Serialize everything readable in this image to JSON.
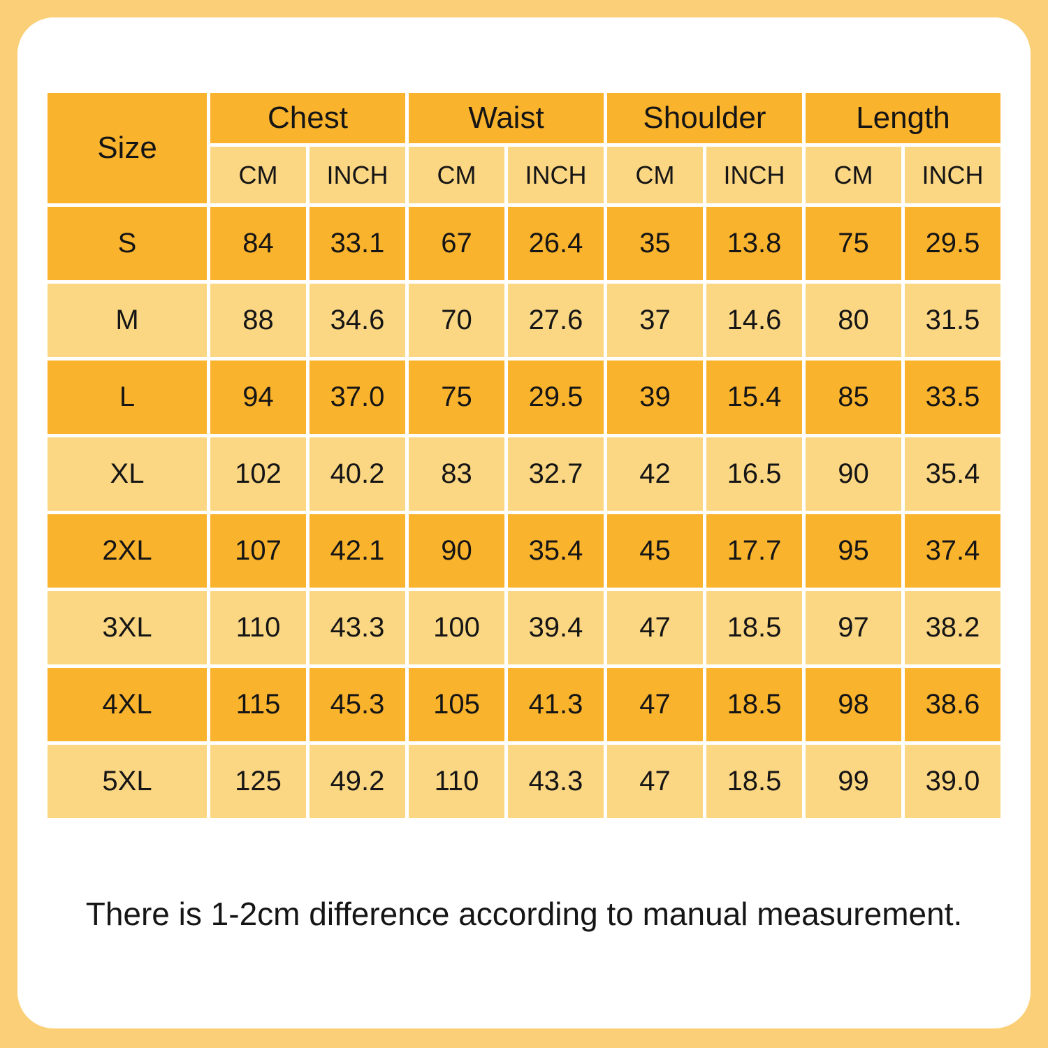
{
  "colors": {
    "frame_border": "#FBCF77",
    "cell_dark_orange": "#FAB32D",
    "cell_light_orange": "#FCD783",
    "card_background": "#FFFFFF",
    "text": "#151515"
  },
  "table": {
    "size_header": "Size",
    "groups": [
      {
        "label": "Chest"
      },
      {
        "label": "Waist"
      },
      {
        "label": "Shoulder"
      },
      {
        "label": "Length"
      }
    ],
    "unit_headers": [
      "CM",
      "INCH"
    ],
    "rows": [
      {
        "size": "S",
        "values": [
          "84",
          "33.1",
          "67",
          "26.4",
          "35",
          "13.8",
          "75",
          "29.5"
        ]
      },
      {
        "size": "M",
        "values": [
          "88",
          "34.6",
          "70",
          "27.6",
          "37",
          "14.6",
          "80",
          "31.5"
        ]
      },
      {
        "size": "L",
        "values": [
          "94",
          "37.0",
          "75",
          "29.5",
          "39",
          "15.4",
          "85",
          "33.5"
        ]
      },
      {
        "size": "XL",
        "values": [
          "102",
          "40.2",
          "83",
          "32.7",
          "42",
          "16.5",
          "90",
          "35.4"
        ]
      },
      {
        "size": "2XL",
        "values": [
          "107",
          "42.1",
          "90",
          "35.4",
          "45",
          "17.7",
          "95",
          "37.4"
        ]
      },
      {
        "size": "3XL",
        "values": [
          "110",
          "43.3",
          "100",
          "39.4",
          "47",
          "18.5",
          "97",
          "38.2"
        ]
      },
      {
        "size": "4XL",
        "values": [
          "115",
          "45.3",
          "105",
          "41.3",
          "47",
          "18.5",
          "98",
          "38.6"
        ]
      },
      {
        "size": "5XL",
        "values": [
          "125",
          "49.2",
          "110",
          "43.3",
          "47",
          "18.5",
          "99",
          "39.0"
        ]
      }
    ]
  },
  "footer": {
    "note": "There is 1-2cm difference according to manual measurement."
  },
  "chart_data": {
    "type": "table",
    "title": "Garment size chart",
    "columns": [
      "Size",
      "Chest CM",
      "Chest INCH",
      "Waist CM",
      "Waist INCH",
      "Shoulder CM",
      "Shoulder INCH",
      "Length CM",
      "Length INCH"
    ],
    "rows": [
      [
        "S",
        84,
        33.1,
        67,
        26.4,
        35,
        13.8,
        75,
        29.5
      ],
      [
        "M",
        88,
        34.6,
        70,
        27.6,
        37,
        14.6,
        80,
        31.5
      ],
      [
        "L",
        94,
        37.0,
        75,
        29.5,
        39,
        15.4,
        85,
        33.5
      ],
      [
        "XL",
        102,
        40.2,
        83,
        32.7,
        42,
        16.5,
        90,
        35.4
      ],
      [
        "2XL",
        107,
        42.1,
        90,
        35.4,
        45,
        17.7,
        95,
        37.4
      ],
      [
        "3XL",
        110,
        43.3,
        100,
        39.4,
        47,
        18.5,
        97,
        38.2
      ],
      [
        "4XL",
        115,
        45.3,
        105,
        41.3,
        47,
        18.5,
        98,
        38.6
      ],
      [
        "5XL",
        125,
        49.2,
        110,
        43.3,
        47,
        18.5,
        99,
        39.0
      ]
    ],
    "annotations": [
      "There is 1-2cm difference according to manual measurement."
    ],
    "layout_hints": {
      "row_striping": [
        "dark",
        "light"
      ],
      "grid": "white 5px gaps between cells",
      "header_rows": 2
    }
  }
}
